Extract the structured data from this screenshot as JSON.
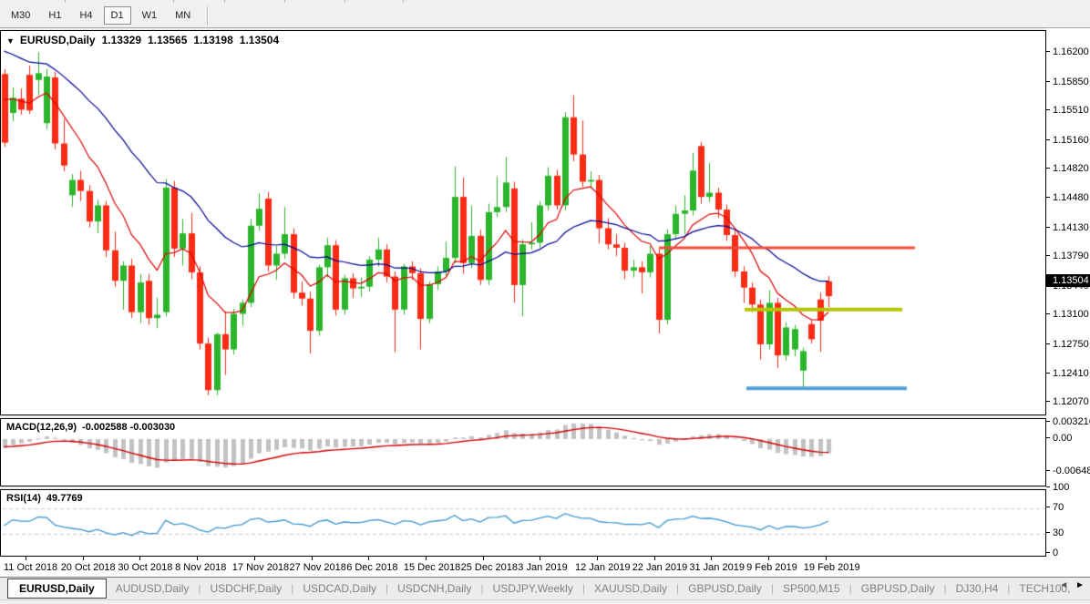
{
  "toolbar": {
    "timeframes": [
      {
        "label": "M30",
        "active": false
      },
      {
        "label": "H1",
        "active": false
      },
      {
        "label": "H4",
        "active": false
      },
      {
        "label": "D1",
        "active": true
      },
      {
        "label": "W1",
        "active": false
      },
      {
        "label": "MN",
        "active": false
      }
    ]
  },
  "chart_header": {
    "dropdown_icon": "▼",
    "symbol": "EURUSD,Daily",
    "open": "1.13329",
    "high": "1.13565",
    "low": "1.13198",
    "close": "1.13504"
  },
  "price_axis": {
    "ticks": [
      "1.16200",
      "1.15850",
      "1.15510",
      "1.15160",
      "1.14820",
      "1.14480",
      "1.14130",
      "1.13790",
      "1.13440",
      "1.13100",
      "1.12750",
      "1.12410",
      "1.12070"
    ],
    "current_price": "1.13504"
  },
  "time_axis": {
    "labels": [
      "11 Oct 2018",
      "20 Oct 2018",
      "30 Oct 2018",
      "8 Nov 2018",
      "17 Nov 2018",
      "27 Nov 2018",
      "6 Dec 2018",
      "15 Dec 2018",
      "25 Dec 2018",
      "3 Jan 2019",
      "12 Jan 2019",
      "22 Jan 2019",
      "31 Jan 2019",
      "9 Feb 2019",
      "19 Feb 2019"
    ]
  },
  "indicators": {
    "macd": {
      "label": "MACD(12,26,9)",
      "values": "-0.002588 -0.003030",
      "axis": [
        "0.003216",
        "0.00",
        "-0.006485"
      ]
    },
    "rsi": {
      "label": "RSI(14)",
      "value": "49.7769",
      "axis": [
        "100",
        "70",
        "30",
        "0"
      ],
      "levels": [
        70,
        30
      ]
    }
  },
  "tabs": {
    "items": [
      {
        "label": "EURUSD,Daily",
        "active": true
      },
      {
        "label": "AUDUSD,Daily",
        "active": false
      },
      {
        "label": "USDCHF,Daily",
        "active": false
      },
      {
        "label": "USDCAD,Daily",
        "active": false
      },
      {
        "label": "USDCNH,Daily",
        "active": false
      },
      {
        "label": "USDJPY,Weekly",
        "active": false
      },
      {
        "label": "XAUUSD,Daily",
        "active": false
      },
      {
        "label": "GBPUSD,Daily",
        "active": false
      },
      {
        "label": "SP500,M15",
        "active": false
      },
      {
        "label": "GBPUSD,Daily",
        "active": false
      },
      {
        "label": "DJ30,H4",
        "active": false
      },
      {
        "label": "TECH100,",
        "active": false
      }
    ],
    "scroll_left": "◄",
    "scroll_right": "►"
  },
  "chart_data": {
    "type": "candlestick",
    "symbol": "EURUSD",
    "timeframe": "Daily",
    "x_range": [
      "11 Oct 2018",
      "19 Feb 2019"
    ],
    "ylim": [
      1.1207,
      1.162
    ],
    "y_ticks": [
      1.162,
      1.1585,
      1.1551,
      1.1516,
      1.1482,
      1.1448,
      1.1413,
      1.1379,
      1.1344,
      1.131,
      1.1275,
      1.1241,
      1.1207
    ],
    "candles": [
      [
        1.1595,
        1.1601,
        1.1509,
        1.1514
      ],
      [
        1.1549,
        1.1579,
        1.1539,
        1.1567
      ],
      [
        1.1566,
        1.1578,
        1.1547,
        1.1553
      ],
      [
        1.1594,
        1.1605,
        1.1548,
        1.1552
      ],
      [
        1.1588,
        1.1621,
        1.157,
        1.1596
      ],
      [
        1.1537,
        1.1601,
        1.153,
        1.1592
      ],
      [
        1.1591,
        1.1598,
        1.1506,
        1.1513
      ],
      [
        1.1513,
        1.1542,
        1.148,
        1.1487
      ],
      [
        1.1452,
        1.1477,
        1.1438,
        1.147
      ],
      [
        1.147,
        1.1481,
        1.1445,
        1.1457
      ],
      [
        1.1457,
        1.1464,
        1.1414,
        1.1421
      ],
      [
        1.1421,
        1.1447,
        1.1407,
        1.144
      ],
      [
        1.144,
        1.1445,
        1.1379,
        1.1387
      ],
      [
        1.1387,
        1.1409,
        1.1344,
        1.1351
      ],
      [
        1.1351,
        1.1374,
        1.1317,
        1.1369
      ],
      [
        1.1369,
        1.1377,
        1.1307,
        1.1314
      ],
      [
        1.1314,
        1.1359,
        1.1301,
        1.1349
      ],
      [
        1.1351,
        1.1359,
        1.1299,
        1.1307
      ],
      [
        1.1307,
        1.1331,
        1.1295,
        1.1311
      ],
      [
        1.1314,
        1.1471,
        1.1309,
        1.1461
      ],
      [
        1.1461,
        1.1469,
        1.1379,
        1.1389
      ],
      [
        1.1389,
        1.1424,
        1.1369,
        1.1407
      ],
      [
        1.1407,
        1.1431,
        1.1353,
        1.1361
      ],
      [
        1.1361,
        1.1368,
        1.127,
        1.1277
      ],
      [
        1.1277,
        1.1284,
        1.1216,
        1.1222
      ],
      [
        1.1222,
        1.129,
        1.1216,
        1.1288
      ],
      [
        1.1288,
        1.1315,
        1.124,
        1.127
      ],
      [
        1.127,
        1.1318,
        1.1264,
        1.1312
      ],
      [
        1.1312,
        1.1329,
        1.1298,
        1.1325
      ],
      [
        1.1325,
        1.1424,
        1.132,
        1.1416
      ],
      [
        1.1416,
        1.1454,
        1.141,
        1.1436
      ],
      [
        1.1448,
        1.1456,
        1.1362,
        1.1369
      ],
      [
        1.1369,
        1.1392,
        1.1352,
        1.1383
      ],
      [
        1.1383,
        1.1438,
        1.1377,
        1.1406
      ],
      [
        1.1406,
        1.1413,
        1.133,
        1.1337
      ],
      [
        1.1337,
        1.135,
        1.1322,
        1.133
      ],
      [
        1.133,
        1.1338,
        1.1265,
        1.1292
      ],
      [
        1.1292,
        1.137,
        1.1286,
        1.1367
      ],
      [
        1.1367,
        1.1402,
        1.1355,
        1.1393
      ],
      [
        1.1393,
        1.1399,
        1.131,
        1.1317
      ],
      [
        1.1317,
        1.1358,
        1.1311,
        1.1354
      ],
      [
        1.1354,
        1.136,
        1.1331,
        1.1342
      ],
      [
        1.1342,
        1.1355,
        1.1332,
        1.1344
      ],
      [
        1.1344,
        1.138,
        1.1338,
        1.1376
      ],
      [
        1.1376,
        1.1402,
        1.1368,
        1.1388
      ],
      [
        1.1388,
        1.1394,
        1.1349,
        1.1356
      ],
      [
        1.1356,
        1.1362,
        1.1267,
        1.1317
      ],
      [
        1.1317,
        1.1371,
        1.1311,
        1.1368
      ],
      [
        1.1368,
        1.1374,
        1.1352,
        1.136
      ],
      [
        1.136,
        1.1366,
        1.127,
        1.1306
      ],
      [
        1.1306,
        1.135,
        1.1301,
        1.1347
      ],
      [
        1.1347,
        1.1368,
        1.134,
        1.1362
      ],
      [
        1.1362,
        1.1397,
        1.1356,
        1.1378
      ],
      [
        1.1378,
        1.1486,
        1.1372,
        1.145
      ],
      [
        1.145,
        1.1473,
        1.1359,
        1.1372
      ],
      [
        1.1372,
        1.144,
        1.1366,
        1.1404
      ],
      [
        1.1404,
        1.1411,
        1.1346,
        1.1352
      ],
      [
        1.1352,
        1.1442,
        1.1346,
        1.1432
      ],
      [
        1.1432,
        1.1474,
        1.1426,
        1.1438
      ],
      [
        1.1438,
        1.1497,
        1.1432,
        1.1467
      ],
      [
        1.146,
        1.1468,
        1.1325,
        1.1346
      ],
      [
        1.1346,
        1.14,
        1.1309,
        1.1394
      ],
      [
        1.1394,
        1.142,
        1.1388,
        1.1396
      ],
      [
        1.1396,
        1.1445,
        1.139,
        1.144
      ],
      [
        1.144,
        1.1485,
        1.1434,
        1.1475
      ],
      [
        1.1475,
        1.1482,
        1.1435,
        1.144
      ],
      [
        1.144,
        1.155,
        1.1434,
        1.1544
      ],
      [
        1.1544,
        1.157,
        1.1492,
        1.15
      ],
      [
        1.15,
        1.154,
        1.1462,
        1.1468
      ],
      [
        1.1468,
        1.148,
        1.146,
        1.147
      ],
      [
        1.147,
        1.1476,
        1.1395,
        1.1413
      ],
      [
        1.1413,
        1.1425,
        1.1388,
        1.1394
      ],
      [
        1.1394,
        1.1406,
        1.138,
        1.139
      ],
      [
        1.139,
        1.1396,
        1.1353,
        1.1363
      ],
      [
        1.1363,
        1.1376,
        1.1355,
        1.1367
      ],
      [
        1.1367,
        1.1374,
        1.1336,
        1.1361
      ],
      [
        1.1361,
        1.1392,
        1.1355,
        1.1383
      ],
      [
        1.1383,
        1.139,
        1.1289,
        1.1305
      ],
      [
        1.1305,
        1.1412,
        1.13,
        1.1406
      ],
      [
        1.1406,
        1.144,
        1.14,
        1.143
      ],
      [
        1.143,
        1.1452,
        1.1406,
        1.1434
      ],
      [
        1.1434,
        1.1502,
        1.1428,
        1.1481
      ],
      [
        1.151,
        1.1515,
        1.1442,
        1.145
      ],
      [
        1.145,
        1.149,
        1.1444,
        1.1455
      ],
      [
        1.1455,
        1.1461,
        1.1425,
        1.1435
      ],
      [
        1.1435,
        1.1441,
        1.1398,
        1.1405
      ],
      [
        1.1405,
        1.1411,
        1.1355,
        1.1362
      ],
      [
        1.1362,
        1.1368,
        1.1325,
        1.1343
      ],
      [
        1.1343,
        1.1349,
        1.1314,
        1.1323
      ],
      [
        1.1323,
        1.1329,
        1.1258,
        1.1276
      ],
      [
        1.1276,
        1.134,
        1.127,
        1.1325
      ],
      [
        1.1325,
        1.1331,
        1.1248,
        1.1263
      ],
      [
        1.1263,
        1.1302,
        1.1257,
        1.1296
      ],
      [
        1.127,
        1.1299,
        1.1262,
        1.1294
      ],
      [
        1.1245,
        1.1272,
        1.1224,
        1.1268
      ],
      [
        1.13,
        1.1305,
        1.1277,
        1.1282
      ],
      [
        1.1329,
        1.1337,
        1.1267,
        1.1304
      ],
      [
        1.13329,
        1.13565,
        1.13198,
        1.13504
      ]
    ],
    "candle_color_overrides": [
      {
        "index": 97,
        "side": "bear"
      }
    ],
    "moving_averages": [
      {
        "name": "fast-ma",
        "color": "#DE0000"
      },
      {
        "name": "slow-ma",
        "color": "#000096"
      }
    ],
    "trendlines": [
      {
        "name": "resistance-line",
        "price": 1.139,
        "x1": 722,
        "x2": 1003,
        "color": "#FA4B3C",
        "width": 3
      },
      {
        "name": "broken-support-line",
        "price": 1.1317,
        "x1": 816,
        "x2": 989,
        "color": "#B2C500",
        "width": 4
      },
      {
        "name": "support-line",
        "price": 1.1224,
        "x1": 818,
        "x2": 994,
        "color": "#52A0D8",
        "width": 4
      }
    ],
    "macd_axis_range": [
      -0.006485,
      0.003216
    ],
    "rsi_levels": [
      70,
      30
    ],
    "colors": {
      "bull": "#2BB52B",
      "bear": "#FB2B14",
      "ma_fast": "#DE0000",
      "ma_slow": "#000096",
      "macd_hist": "#C2C2C2",
      "macd_signal": "#D40000",
      "rsi_line": "#3B95D0",
      "level_dash": "#CBCBCB",
      "price_tag_bg": "#000000",
      "price_tag_text": "#FFFFFF"
    }
  }
}
